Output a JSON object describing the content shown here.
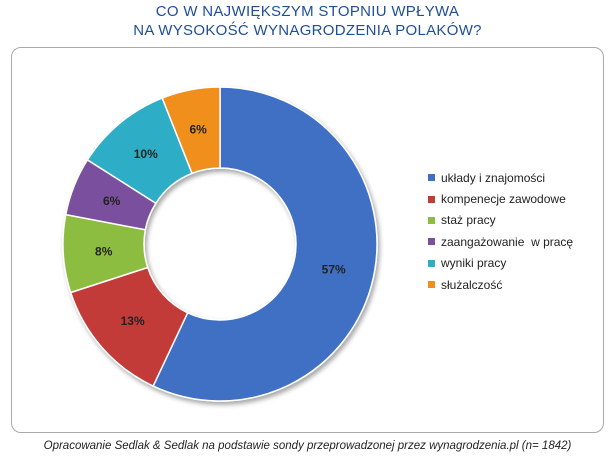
{
  "title_lines": [
    "CO W NAJWIĘKSZYM STOPNIU WPŁYWA",
    "NA WYSOKOŚĆ WYNAGRODZENIA POLAKÓW?"
  ],
  "source_note": "Opracowanie Sedlak & Sedlak na podstawie sondy przeprowadzonej przez wynagrodzenia.pl (n= 1842)",
  "chart_data": {
    "type": "pie",
    "variant": "doughnut",
    "legend_position": "right",
    "unit": "%",
    "slices": [
      {
        "label": "układy i znajomości",
        "value": 57,
        "display": "57%",
        "color": "#3f6fc4"
      },
      {
        "label": "kompenecje zawodowe",
        "value": 13,
        "display": "13%",
        "color": "#c23b37"
      },
      {
        "label": "staż pracy",
        "value": 8,
        "display": "8%",
        "color": "#8cbd3f"
      },
      {
        "label": "zaangażowanie  w pracę",
        "value": 6,
        "display": "6%",
        "color": "#7a4f9e"
      },
      {
        "label": "wyniki pracy",
        "value": 10,
        "display": "10%",
        "color": "#2eaec6"
      },
      {
        "label": "służalczość",
        "value": 6,
        "display": "6%",
        "color": "#f08f1c"
      }
    ]
  }
}
